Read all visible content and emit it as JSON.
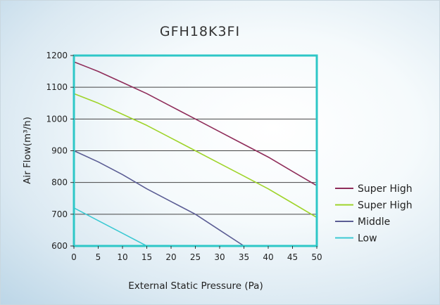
{
  "chart_data": {
    "type": "line",
    "title": "GFH18K3FI",
    "xlabel": "External Static Pressure (Pa)",
    "ylabel": "Air Flow(m³/h)",
    "xlim": [
      0,
      50
    ],
    "ylim": [
      600,
      1200
    ],
    "x_ticks": [
      0,
      5,
      10,
      15,
      20,
      25,
      30,
      35,
      40,
      45,
      50
    ],
    "y_ticks": [
      600,
      700,
      800,
      900,
      1000,
      1100,
      1200
    ],
    "grid": "horizontal",
    "legend_position": "right",
    "series": [
      {
        "name": "Super High",
        "color": "#8f2d5a",
        "points": [
          [
            0,
            1180
          ],
          [
            5,
            1150
          ],
          [
            10,
            1115
          ],
          [
            15,
            1080
          ],
          [
            20,
            1040
          ],
          [
            25,
            1000
          ],
          [
            30,
            960
          ],
          [
            35,
            920
          ],
          [
            40,
            880
          ],
          [
            45,
            835
          ],
          [
            50,
            790
          ]
        ]
      },
      {
        "name": "Super High",
        "color": "#9fd42a",
        "points": [
          [
            0,
            1080
          ],
          [
            5,
            1050
          ],
          [
            10,
            1015
          ],
          [
            15,
            980
          ],
          [
            20,
            940
          ],
          [
            25,
            900
          ],
          [
            30,
            860
          ],
          [
            35,
            820
          ],
          [
            40,
            780
          ],
          [
            45,
            735
          ],
          [
            50,
            690
          ]
        ]
      },
      {
        "name": "Middle",
        "color": "#5b5d94",
        "points": [
          [
            0,
            900
          ],
          [
            5,
            865
          ],
          [
            10,
            825
          ],
          [
            15,
            780
          ],
          [
            20,
            740
          ],
          [
            25,
            700
          ],
          [
            30,
            650
          ],
          [
            35,
            600
          ]
        ]
      },
      {
        "name": "Low",
        "color": "#3cc9d3",
        "points": [
          [
            0,
            720
          ],
          [
            5,
            680
          ],
          [
            10,
            640
          ],
          [
            15,
            600
          ]
        ]
      }
    ]
  }
}
